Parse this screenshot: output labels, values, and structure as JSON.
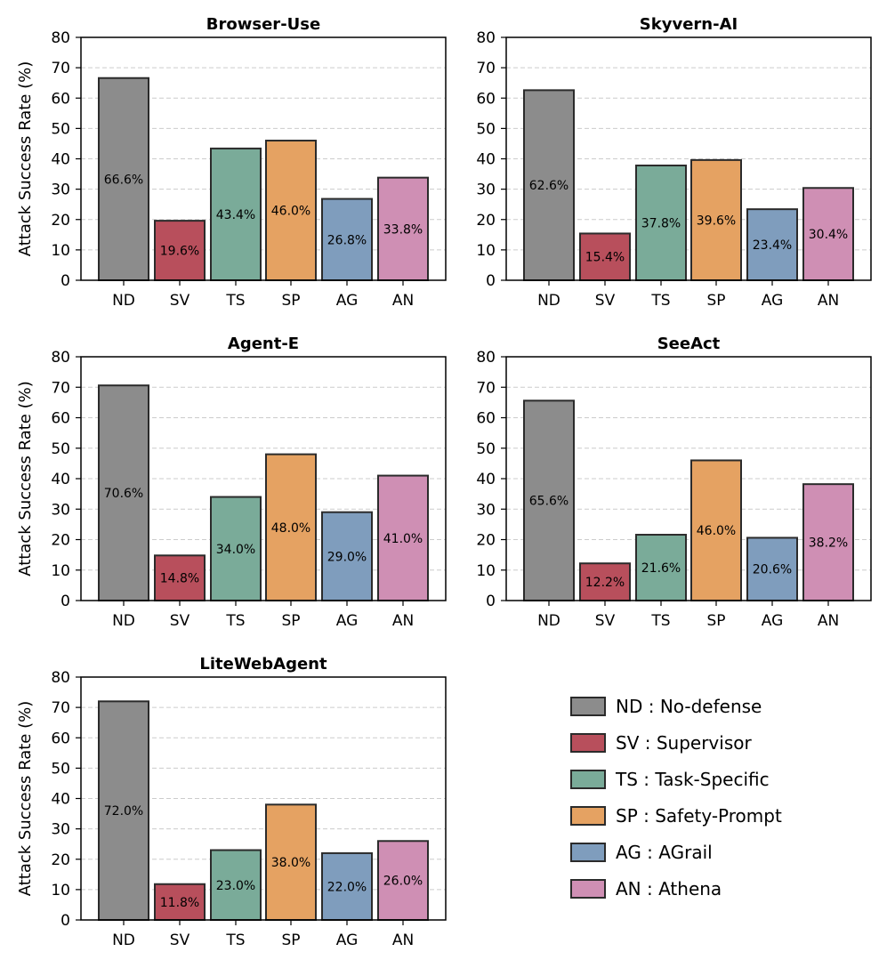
{
  "chart_data": [
    {
      "type": "bar",
      "title": "Browser-Use",
      "categories": [
        "ND",
        "SV",
        "TS",
        "SP",
        "AG",
        "AN"
      ],
      "values": [
        66.6,
        19.6,
        43.4,
        46.0,
        26.8,
        33.8
      ],
      "labels": [
        "66.6%",
        "19.6%",
        "43.4%",
        "46.0%",
        "26.8%",
        "33.8%"
      ],
      "ylabel": "Attack Success Rate (%)",
      "ylim": [
        0,
        80
      ],
      "yticks": [
        "0",
        "10",
        "20",
        "30",
        "40",
        "50",
        "60",
        "70",
        "80"
      ],
      "grid": "y-dashed"
    },
    {
      "type": "bar",
      "title": "Skyvern-AI",
      "categories": [
        "ND",
        "SV",
        "TS",
        "SP",
        "AG",
        "AN"
      ],
      "values": [
        62.6,
        15.4,
        37.8,
        39.6,
        23.4,
        30.4
      ],
      "labels": [
        "62.6%",
        "15.4%",
        "37.8%",
        "39.6%",
        "23.4%",
        "30.4%"
      ],
      "ylabel": "",
      "ylim": [
        0,
        80
      ],
      "yticks": [
        "0",
        "10",
        "20",
        "30",
        "40",
        "50",
        "60",
        "70",
        "80"
      ],
      "grid": "y-dashed"
    },
    {
      "type": "bar",
      "title": "Agent-E",
      "categories": [
        "ND",
        "SV",
        "TS",
        "SP",
        "AG",
        "AN"
      ],
      "values": [
        70.6,
        14.8,
        34.0,
        48.0,
        29.0,
        41.0
      ],
      "labels": [
        "70.6%",
        "14.8%",
        "34.0%",
        "48.0%",
        "29.0%",
        "41.0%"
      ],
      "ylabel": "Attack Success Rate (%)",
      "ylim": [
        0,
        80
      ],
      "yticks": [
        "0",
        "10",
        "20",
        "30",
        "40",
        "50",
        "60",
        "70",
        "80"
      ],
      "grid": "y-dashed"
    },
    {
      "type": "bar",
      "title": "SeeAct",
      "categories": [
        "ND",
        "SV",
        "TS",
        "SP",
        "AG",
        "AN"
      ],
      "values": [
        65.6,
        12.2,
        21.6,
        46.0,
        20.6,
        38.2
      ],
      "labels": [
        "65.6%",
        "12.2%",
        "21.6%",
        "46.0%",
        "20.6%",
        "38.2%"
      ],
      "ylabel": "",
      "ylim": [
        0,
        80
      ],
      "yticks": [
        "0",
        "10",
        "20",
        "30",
        "40",
        "50",
        "60",
        "70",
        "80"
      ],
      "grid": "y-dashed"
    },
    {
      "type": "bar",
      "title": "LiteWebAgent",
      "categories": [
        "ND",
        "SV",
        "TS",
        "SP",
        "AG",
        "AN"
      ],
      "values": [
        72.0,
        11.8,
        23.0,
        38.0,
        22.0,
        26.0
      ],
      "labels": [
        "72.0%",
        "11.8%",
        "23.0%",
        "38.0%",
        "22.0%",
        "26.0%"
      ],
      "ylabel": "Attack Success Rate (%)",
      "ylim": [
        0,
        80
      ],
      "yticks": [
        "0",
        "10",
        "20",
        "30",
        "40",
        "50",
        "60",
        "70",
        "80"
      ],
      "grid": "y-dashed"
    }
  ],
  "legend": {
    "placement": "bottom-right",
    "items": [
      {
        "label": "ND : No-defense",
        "color": "#8c8c8c"
      },
      {
        "label": "SV : Supervisor",
        "color": "#b84f5c"
      },
      {
        "label": "TS : Task-Specific",
        "color": "#7aab99"
      },
      {
        "label": "SP : Safety-Prompt",
        "color": "#e5a262"
      },
      {
        "label": "AG : AGrail",
        "color": "#7f9dbd"
      },
      {
        "label": "AN : Athena",
        "color": "#cf8fb4"
      }
    ]
  },
  "colors": {
    "ND": "#8c8c8c",
    "SV": "#b84f5c",
    "TS": "#7aab99",
    "SP": "#e5a262",
    "AG": "#7f9dbd",
    "AN": "#cf8fb4",
    "edge": "#2b2b2b",
    "grid": "#cccccc"
  }
}
